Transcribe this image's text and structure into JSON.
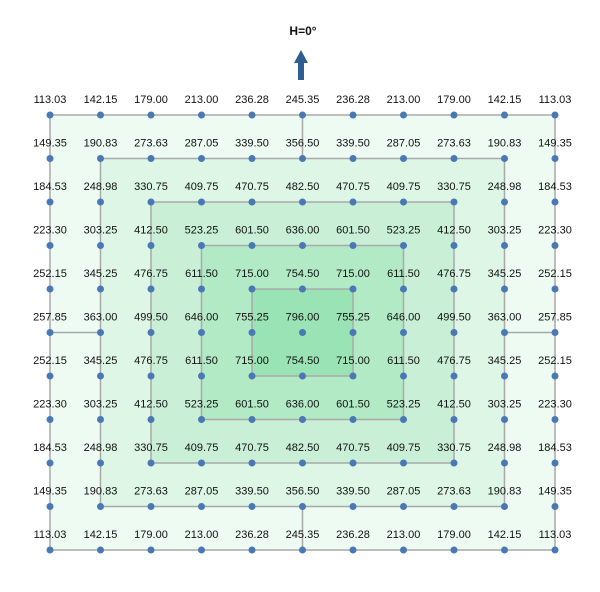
{
  "title": "H=0°",
  "grid": {
    "rows": [
      [
        "113.03",
        "142.15",
        "179.00",
        "213.00",
        "236.28",
        "245.35",
        "236.28",
        "213.00",
        "179.00",
        "142.15",
        "113.03"
      ],
      [
        "149.35",
        "190.83",
        "273.63",
        "287.05",
        "339.50",
        "356.50",
        "339.50",
        "287.05",
        "273.63",
        "190.83",
        "149.35"
      ],
      [
        "184.53",
        "248.98",
        "330.75",
        "409.75",
        "470.75",
        "482.50",
        "470.75",
        "409.75",
        "330.75",
        "248.98",
        "184.53"
      ],
      [
        "223.30",
        "303.25",
        "412.50",
        "523.25",
        "601.50",
        "636.00",
        "601.50",
        "523.25",
        "412.50",
        "303.25",
        "223.30"
      ],
      [
        "252.15",
        "345.25",
        "476.75",
        "611.50",
        "715.00",
        "754.50",
        "715.00",
        "611.50",
        "476.75",
        "345.25",
        "252.15"
      ],
      [
        "257.85",
        "363.00",
        "499.50",
        "646.00",
        "755.25",
        "796.00",
        "755.25",
        "646.00",
        "499.50",
        "363.00",
        "257.85"
      ],
      [
        "252.15",
        "345.25",
        "476.75",
        "611.50",
        "715.00",
        "754.50",
        "715.00",
        "611.50",
        "476.75",
        "345.25",
        "252.15"
      ],
      [
        "223.30",
        "303.25",
        "412.50",
        "523.25",
        "601.50",
        "636.00",
        "601.50",
        "523.25",
        "412.50",
        "303.25",
        "223.30"
      ],
      [
        "184.53",
        "248.98",
        "330.75",
        "409.75",
        "470.75",
        "482.50",
        "470.75",
        "409.75",
        "330.75",
        "248.98",
        "184.53"
      ],
      [
        "149.35",
        "190.83",
        "273.63",
        "287.05",
        "339.50",
        "356.50",
        "339.50",
        "287.05",
        "273.63",
        "190.83",
        "149.35"
      ],
      [
        "113.03",
        "142.15",
        "179.00",
        "213.00",
        "236.28",
        "245.35",
        "236.28",
        "213.00",
        "179.00",
        "142.15",
        "113.03"
      ]
    ]
  }
}
